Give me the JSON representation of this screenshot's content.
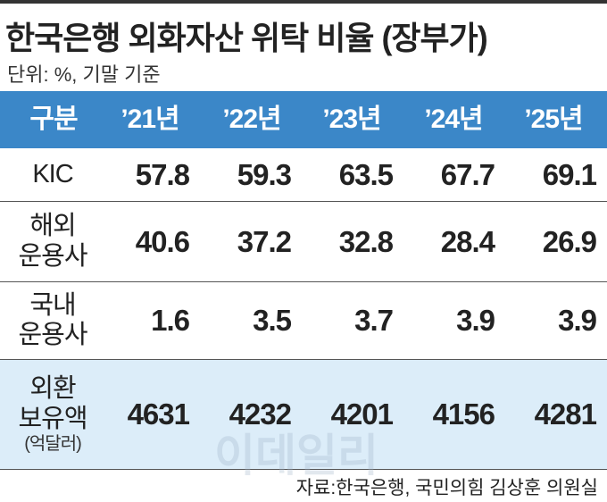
{
  "title": "한국은행 외화자산 위탁 비율 (장부가)",
  "unit": "단위: %, 기말 기준",
  "table": {
    "header": [
      "구분",
      "’21년",
      "’22년",
      "’23년",
      "’24년",
      "’25년"
    ],
    "rows": [
      {
        "label": [
          "KIC"
        ],
        "values": [
          57.8,
          59.3,
          63.5,
          67.7,
          69.1
        ]
      },
      {
        "label": [
          "해외",
          "운용사"
        ],
        "values": [
          40.6,
          37.2,
          32.8,
          28.4,
          26.9
        ]
      },
      {
        "label": [
          "국내",
          "운용사"
        ],
        "values": [
          1.6,
          3.5,
          3.7,
          3.9,
          3.9
        ]
      },
      {
        "label": [
          "외환",
          "보유액",
          "(억달러)"
        ],
        "values": [
          4631,
          4232,
          4201,
          4156,
          4281
        ]
      }
    ]
  },
  "watermark": "이데일리",
  "source": "자료:한국은행, 국민의힘 김상훈 의원실"
}
